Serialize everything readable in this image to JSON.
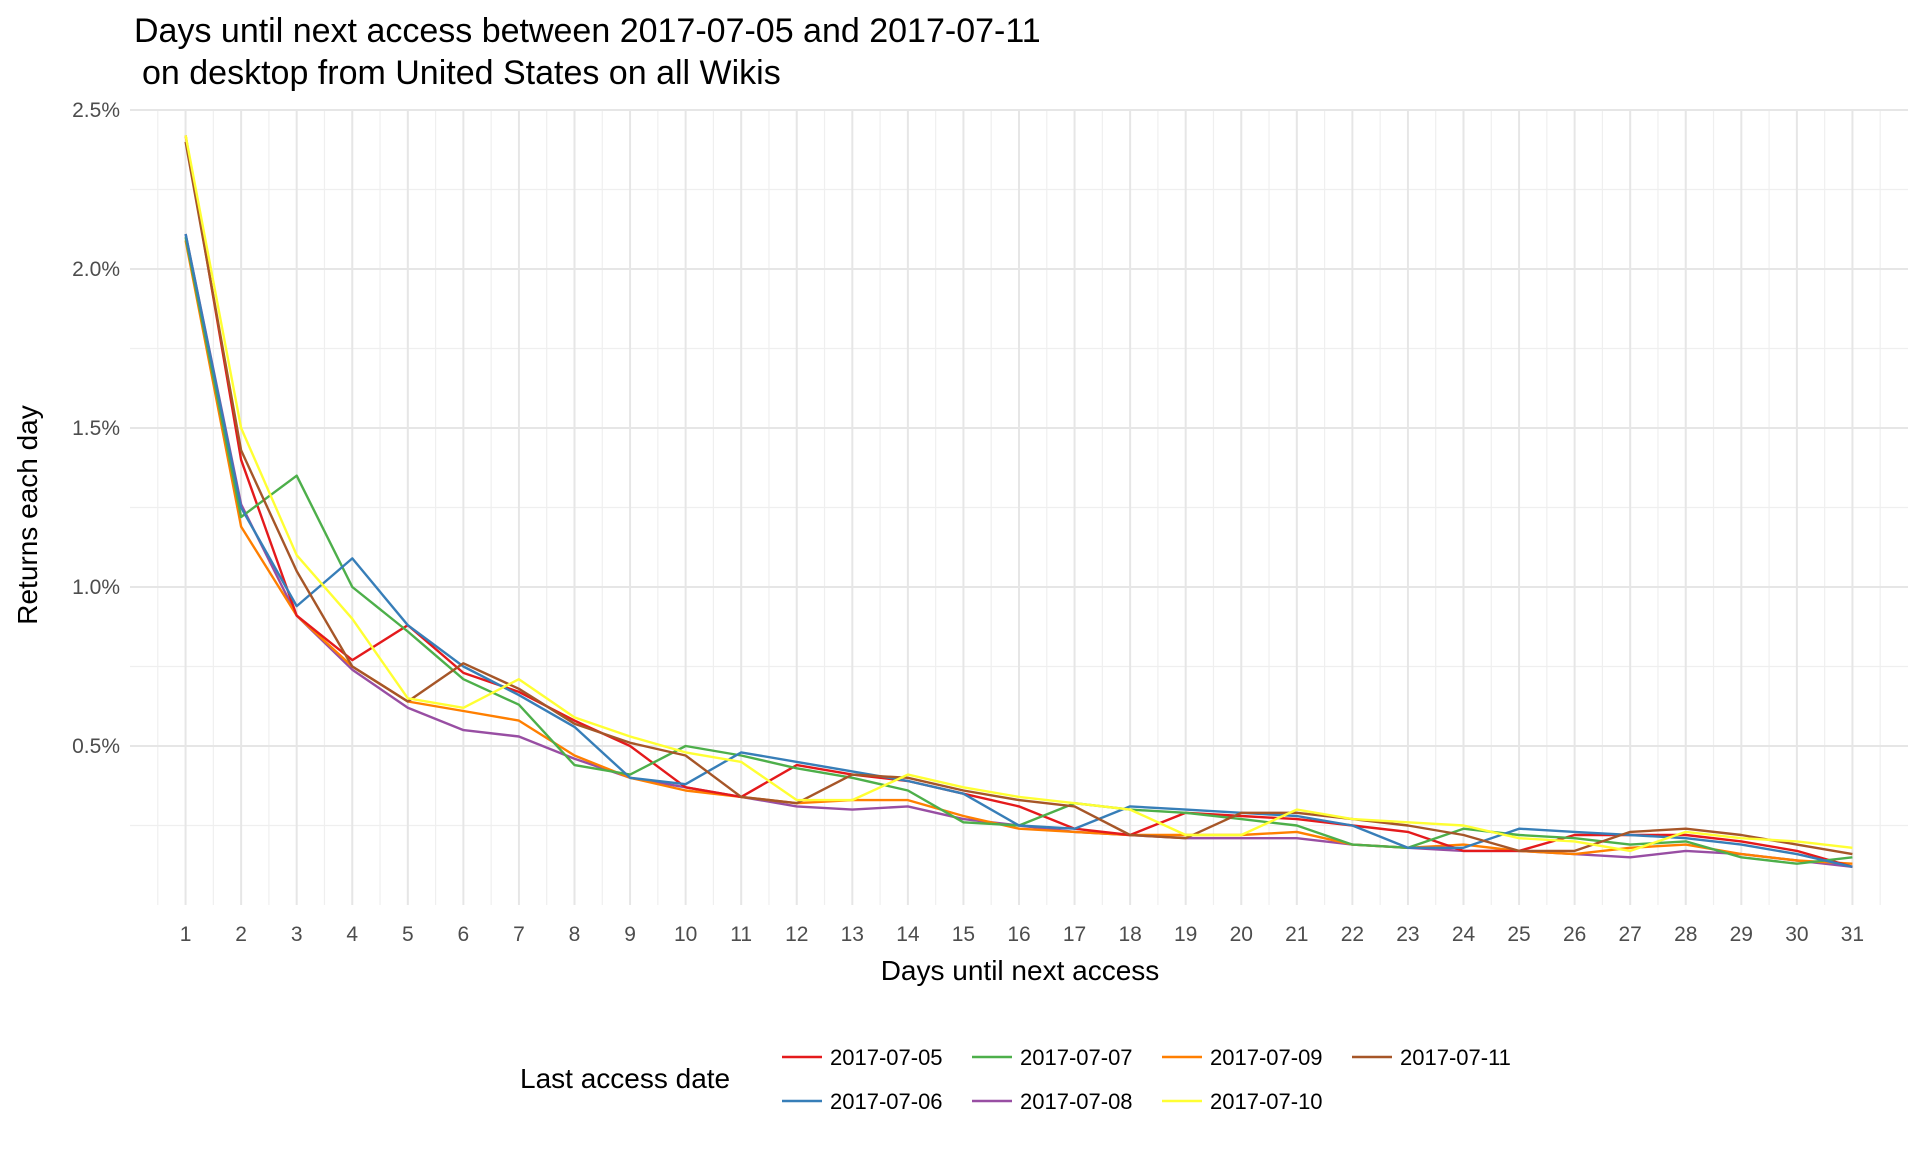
{
  "chart_data": {
    "type": "line",
    "title": "Days until next access between 2017-07-05 and 2017-07-11",
    "subtitle": "on desktop from United States on all Wikis",
    "xlabel": "Days until next access",
    "ylabel": "Returns each day",
    "x": [
      1,
      2,
      3,
      4,
      5,
      6,
      7,
      8,
      9,
      10,
      11,
      12,
      13,
      14,
      15,
      16,
      17,
      18,
      19,
      20,
      21,
      22,
      23,
      24,
      25,
      26,
      27,
      28,
      29,
      30,
      31
    ],
    "xlim": [
      0,
      32
    ],
    "ylim": [
      0.0,
      2.5
    ],
    "y_ticks": [
      0.5,
      1.0,
      1.5,
      2.0,
      2.5
    ],
    "y_tick_labels": [
      "0.5%",
      "1.0%",
      "1.5%",
      "2.0%",
      "2.5%"
    ],
    "y_unit": "%",
    "grid": true,
    "legend": {
      "title": "Last access date",
      "position": "bottom"
    },
    "series": [
      {
        "name": "2017-07-05",
        "color": "#e41a1c",
        "values": [
          2.42,
          1.4,
          0.91,
          0.77,
          0.88,
          0.73,
          0.67,
          0.58,
          0.5,
          0.37,
          0.34,
          0.44,
          0.41,
          0.39,
          0.35,
          0.31,
          0.24,
          0.22,
          0.29,
          0.28,
          0.27,
          0.25,
          0.23,
          0.17,
          0.17,
          0.22,
          0.22,
          0.22,
          0.2,
          0.17,
          0.12
        ]
      },
      {
        "name": "2017-07-06",
        "color": "#377eb8",
        "values": [
          2.11,
          1.25,
          0.94,
          1.09,
          0.88,
          0.75,
          0.66,
          0.56,
          0.4,
          0.38,
          0.48,
          0.45,
          0.42,
          0.39,
          0.35,
          0.25,
          0.24,
          0.31,
          0.3,
          0.29,
          0.28,
          0.25,
          0.18,
          0.18,
          0.24,
          0.23,
          0.22,
          0.21,
          0.19,
          0.16,
          0.12
        ]
      },
      {
        "name": "2017-07-07",
        "color": "#4daf4a",
        "values": [
          2.1,
          1.22,
          1.35,
          1.0,
          0.86,
          0.71,
          0.63,
          0.44,
          0.41,
          0.5,
          0.47,
          0.43,
          0.4,
          0.36,
          0.26,
          0.25,
          0.32,
          0.3,
          0.29,
          0.27,
          0.25,
          0.19,
          0.18,
          0.24,
          0.22,
          0.21,
          0.19,
          0.2,
          0.15,
          0.13,
          0.15
        ]
      },
      {
        "name": "2017-07-08",
        "color": "#984ea3",
        "values": [
          2.11,
          1.26,
          0.91,
          0.74,
          0.62,
          0.55,
          0.53,
          0.46,
          0.4,
          0.37,
          0.34,
          0.31,
          0.3,
          0.31,
          0.27,
          0.25,
          0.23,
          0.22,
          0.21,
          0.21,
          0.21,
          0.19,
          0.18,
          0.17,
          0.17,
          0.16,
          0.15,
          0.17,
          0.16,
          0.14,
          0.12
        ]
      },
      {
        "name": "2017-07-09",
        "color": "#ff7f00",
        "values": [
          2.09,
          1.19,
          0.91,
          0.75,
          0.64,
          0.61,
          0.58,
          0.47,
          0.4,
          0.36,
          0.34,
          0.32,
          0.33,
          0.33,
          0.28,
          0.24,
          0.23,
          0.22,
          0.22,
          0.22,
          0.23,
          0.19,
          0.18,
          0.19,
          0.17,
          0.16,
          0.18,
          0.19,
          0.16,
          0.14,
          0.13
        ]
      },
      {
        "name": "2017-07-10",
        "color": "#ffff33",
        "values": [
          2.42,
          1.5,
          1.1,
          0.9,
          0.65,
          0.62,
          0.71,
          0.59,
          0.53,
          0.48,
          0.45,
          0.33,
          0.33,
          0.41,
          0.37,
          0.34,
          0.32,
          0.3,
          0.22,
          0.22,
          0.3,
          0.27,
          0.26,
          0.25,
          0.21,
          0.2,
          0.17,
          0.23,
          0.21,
          0.2,
          0.18
        ]
      },
      {
        "name": "2017-07-11",
        "color": "#a65628",
        "values": [
          2.4,
          1.43,
          1.05,
          0.75,
          0.64,
          0.76,
          0.68,
          0.57,
          0.51,
          0.47,
          0.34,
          0.32,
          0.41,
          0.4,
          0.36,
          0.33,
          0.31,
          0.22,
          0.21,
          0.29,
          0.29,
          0.27,
          0.25,
          0.22,
          0.17,
          0.17,
          0.23,
          0.24,
          0.22,
          0.19,
          0.16
        ]
      }
    ]
  }
}
